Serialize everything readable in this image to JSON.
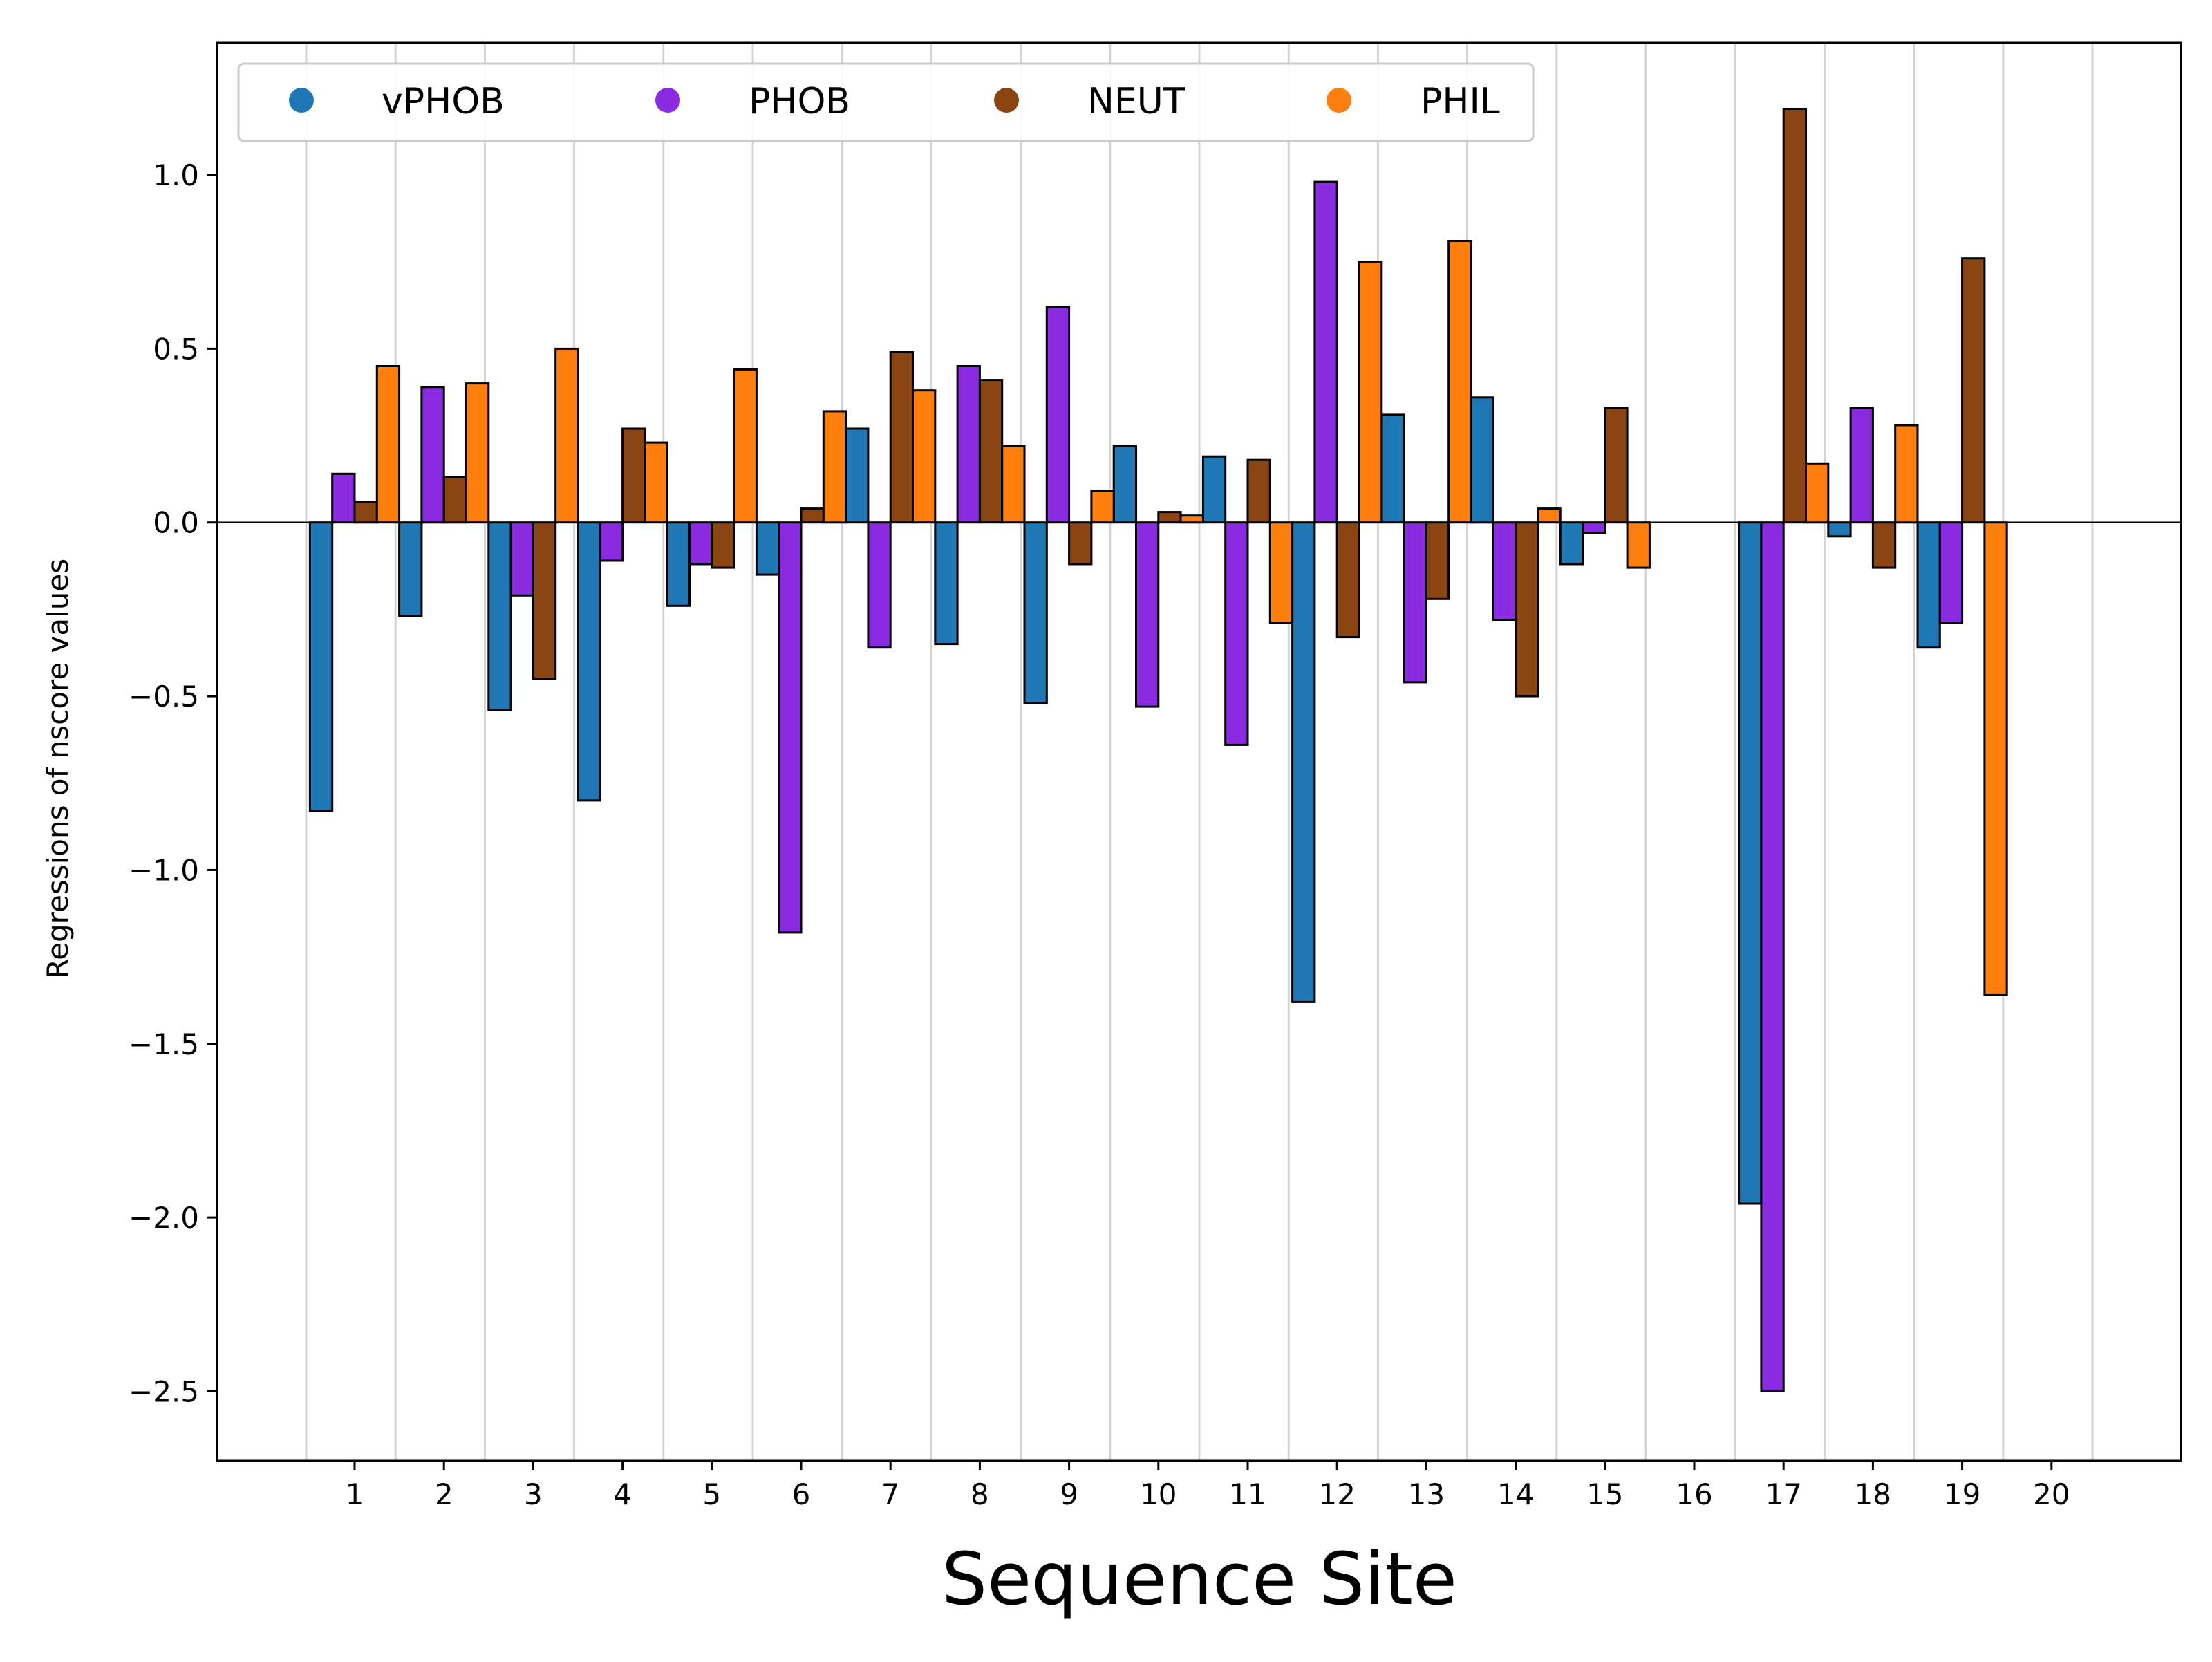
{
  "chart_data": {
    "type": "bar",
    "xlabel": "Sequence Site",
    "ylabel": "Regressions of nscore values",
    "categories": [
      "1",
      "2",
      "3",
      "4",
      "5",
      "6",
      "7",
      "8",
      "9",
      "10",
      "11",
      "12",
      "13",
      "14",
      "15",
      "16",
      "17",
      "18",
      "19",
      "20"
    ],
    "ylim": [
      -2.7,
      1.38
    ],
    "yticks": [
      1.0,
      0.5,
      0.0,
      -0.5,
      -1.0,
      -1.5,
      -2.0,
      -2.5
    ],
    "ytick_labels": [
      "1.0",
      "0.5",
      "0.0",
      "−0.5",
      "−1.0",
      "−1.5",
      "−2.0",
      "−2.5"
    ],
    "grid": "vertical lines between sites",
    "zero_line": true,
    "legend_position": "top-left",
    "series": [
      {
        "name": "vPHOB",
        "color": "#1f77b4",
        "values": [
          -0.83,
          -0.27,
          -0.54,
          -0.8,
          -0.24,
          -0.15,
          0.27,
          -0.35,
          -0.52,
          0.22,
          0.19,
          -1.38,
          0.31,
          0.36,
          -0.12,
          null,
          -1.96,
          -0.04,
          -0.36,
          null
        ]
      },
      {
        "name": "PHOB",
        "color": "#8a2be2",
        "values": [
          0.14,
          0.39,
          -0.21,
          -0.11,
          -0.12,
          -1.18,
          -0.36,
          0.45,
          0.62,
          -0.53,
          -0.64,
          0.98,
          -0.46,
          -0.28,
          -0.03,
          null,
          -2.5,
          0.33,
          -0.29,
          null
        ]
      },
      {
        "name": "NEUT",
        "color": "#8b4513",
        "values": [
          0.06,
          0.13,
          -0.45,
          0.27,
          -0.13,
          0.04,
          0.49,
          0.41,
          -0.12,
          0.03,
          0.18,
          -0.33,
          -0.22,
          -0.5,
          0.33,
          null,
          1.19,
          -0.13,
          0.76,
          null
        ]
      },
      {
        "name": "PHIL",
        "color": "#ff7f0e",
        "values": [
          0.45,
          0.4,
          0.5,
          0.23,
          0.44,
          0.32,
          0.38,
          0.22,
          0.09,
          0.02,
          -0.29,
          0.75,
          0.81,
          0.04,
          -0.13,
          null,
          0.17,
          0.28,
          -1.36,
          null
        ]
      }
    ]
  }
}
